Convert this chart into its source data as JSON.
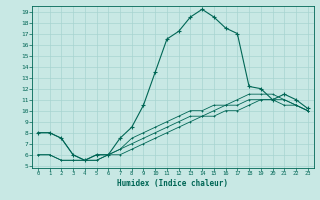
{
  "background_color": "#c8e8e4",
  "grid_color": "#a8d4d0",
  "line_color": "#006655",
  "xlabel": "Humidex (Indice chaleur)",
  "xlim": [
    -0.5,
    23.5
  ],
  "ylim": [
    4.8,
    19.5
  ],
  "xticks": [
    0,
    1,
    2,
    3,
    4,
    5,
    6,
    7,
    8,
    9,
    10,
    11,
    12,
    13,
    14,
    15,
    16,
    17,
    18,
    19,
    20,
    21,
    22,
    23
  ],
  "yticks": [
    5,
    6,
    7,
    8,
    9,
    10,
    11,
    12,
    13,
    14,
    15,
    16,
    17,
    18,
    19
  ],
  "main_x": [
    0,
    1,
    2,
    3,
    4,
    5,
    6,
    7,
    8,
    9,
    10,
    11,
    12,
    13,
    14,
    15,
    16,
    17,
    18,
    19,
    20,
    21,
    22,
    23
  ],
  "main_y": [
    8,
    8,
    7.5,
    6,
    5.5,
    6,
    6,
    7.5,
    8.5,
    10.5,
    13.5,
    16.5,
    17.2,
    18.5,
    19.2,
    18.5,
    17.5,
    17,
    12.2,
    12,
    11,
    11.5,
    11,
    10.2
  ],
  "env1_x": [
    0,
    1,
    2,
    3,
    4,
    5,
    6,
    7,
    8,
    9,
    10,
    11,
    12,
    13,
    14,
    15,
    16,
    17,
    18,
    19,
    20,
    21,
    22,
    23
  ],
  "env1_y": [
    8,
    8,
    7.5,
    6,
    5.5,
    6,
    6,
    6.5,
    7.5,
    8.0,
    8.5,
    9.0,
    9.5,
    10.0,
    10.0,
    10.5,
    10.5,
    11.0,
    11.5,
    11.5,
    11.5,
    11.0,
    10.5,
    10.0
  ],
  "env2_x": [
    0,
    1,
    2,
    3,
    4,
    5,
    6,
    7,
    8,
    9,
    10,
    11,
    12,
    13,
    14,
    15,
    16,
    17,
    18,
    19,
    20,
    21,
    22,
    23
  ],
  "env2_y": [
    6,
    6,
    5.5,
    5.5,
    5.5,
    5.5,
    6.0,
    6.5,
    7.0,
    7.5,
    8.0,
    8.5,
    9.0,
    9.5,
    9.5,
    10.0,
    10.5,
    10.5,
    11.0,
    11.0,
    11.0,
    11.0,
    10.5,
    10.0
  ],
  "env3_x": [
    0,
    1,
    2,
    3,
    4,
    5,
    6,
    7,
    8,
    9,
    10,
    11,
    12,
    13,
    14,
    15,
    16,
    17,
    18,
    19,
    20,
    21,
    22,
    23
  ],
  "env3_y": [
    6,
    6,
    5.5,
    5.5,
    5.5,
    5.5,
    6.0,
    6.0,
    6.5,
    7.0,
    7.5,
    8.0,
    8.5,
    9.0,
    9.5,
    9.5,
    10.0,
    10.0,
    10.5,
    11.0,
    11.0,
    10.5,
    10.5,
    10.0
  ]
}
